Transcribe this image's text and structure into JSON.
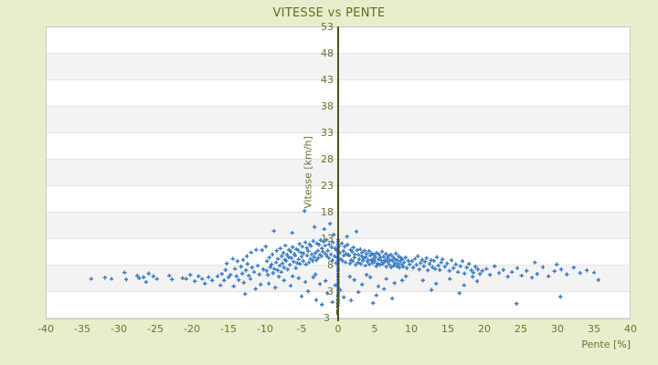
{
  "chart": {
    "title": "VITESSE vs PENTE",
    "colors": {
      "background": "#e8eecd",
      "point_blue": "#3e7fc4",
      "axis_line_olive": "#4c521a",
      "tick_text_olive": "#6d7133",
      "title_text_olive": "#5e6d1d",
      "band_gray": "#f3f3f3",
      "grid_line": "#e4e4e4",
      "plot_border": "#c9c9c9"
    }
  },
  "chart_data": {
    "type": "scatter",
    "title": "VITESSE vs PENTE",
    "xlabel": "Pente [%]",
    "ylabel": "Vitesse [km/h]",
    "xlim": [
      -40,
      40
    ],
    "ylim": [
      -2,
      53
    ],
    "x_ticks": [
      "-40",
      "-35",
      "-30",
      "-25",
      "-20",
      "-15",
      "-10",
      "-5",
      "0",
      "5",
      "10",
      "15",
      "20",
      "25",
      "30",
      "35",
      "40"
    ],
    "y_ticks": [
      "53",
      "48",
      "43",
      "38",
      "33",
      "28",
      "23",
      "18",
      "13",
      "8",
      "3"
    ],
    "y_axis_min_label": "3",
    "grid": "horizontal-bands-alternating-white-gray",
    "legend": false,
    "marker": "plus",
    "points": [
      [
        -33.8,
        5.5
      ],
      [
        -31.9,
        5.7
      ],
      [
        -31.0,
        5.5
      ],
      [
        -29.2,
        6.7
      ],
      [
        -29.0,
        5.4
      ],
      [
        -27.5,
        6.1
      ],
      [
        -27.2,
        5.6
      ],
      [
        -26.6,
        5.8
      ],
      [
        -26.3,
        4.9
      ],
      [
        -25.9,
        6.5
      ],
      [
        -25.3,
        6.0
      ],
      [
        -24.8,
        5.5
      ],
      [
        -23.1,
        6.1
      ],
      [
        -22.7,
        5.4
      ],
      [
        -21.3,
        5.6
      ],
      [
        -20.8,
        5.5
      ],
      [
        -20.2,
        6.2
      ],
      [
        -19.6,
        5.0
      ],
      [
        -19.1,
        6.0
      ],
      [
        -18.6,
        5.5
      ],
      [
        -18.2,
        4.6
      ],
      [
        -17.7,
        5.8
      ],
      [
        -17.2,
        5.2
      ],
      [
        -16.5,
        6.0
      ],
      [
        -16.1,
        4.3
      ],
      [
        -15.9,
        6.4
      ],
      [
        -15.6,
        5.2
      ],
      [
        -15.4,
        7.2
      ],
      [
        -15.2,
        8.4
      ],
      [
        -15.0,
        5.8
      ],
      [
        -14.7,
        6.2
      ],
      [
        -14.4,
        9.3
      ],
      [
        -14.3,
        4.1
      ],
      [
        -14.1,
        7.4
      ],
      [
        -13.9,
        6.0
      ],
      [
        -13.8,
        8.8
      ],
      [
        -13.6,
        5.3
      ],
      [
        -13.3,
        7.8
      ],
      [
        -13.1,
        6.5
      ],
      [
        -13.0,
        9.1
      ],
      [
        -12.9,
        4.8
      ],
      [
        -12.7,
        2.6
      ],
      [
        -12.6,
        7.1
      ],
      [
        -12.5,
        9.8
      ],
      [
        -12.4,
        8.3
      ],
      [
        -12.2,
        6.1
      ],
      [
        -12.0,
        5.5
      ],
      [
        -11.9,
        10.5
      ],
      [
        -11.8,
        7.6
      ],
      [
        -11.5,
        6.8
      ],
      [
        -11.3,
        3.6
      ],
      [
        -11.2,
        11.0
      ],
      [
        -11.0,
        8.0
      ],
      [
        -10.8,
        6.3
      ],
      [
        -10.6,
        4.4
      ],
      [
        -10.4,
        10.9
      ],
      [
        -10.2,
        7.3
      ],
      [
        -9.9,
        11.6
      ],
      [
        -9.8,
        7.0
      ],
      [
        -9.7,
        8.8
      ],
      [
        -9.6,
        6.2
      ],
      [
        -9.5,
        4.6
      ],
      [
        -9.4,
        9.5
      ],
      [
        -9.3,
        7.7
      ],
      [
        -9.1,
        8.2
      ],
      [
        -9.0,
        10.1
      ],
      [
        -8.9,
        6.6
      ],
      [
        -8.8,
        14.5
      ],
      [
        -8.7,
        7.4
      ],
      [
        -8.6,
        3.8
      ],
      [
        -8.5,
        8.6
      ],
      [
        -8.4,
        10.8
      ],
      [
        -8.3,
        7.1
      ],
      [
        -8.2,
        9.3
      ],
      [
        -8.1,
        5.9
      ],
      [
        -8.0,
        8.0
      ],
      [
        -7.9,
        11.2
      ],
      [
        -7.8,
        6.8
      ],
      [
        -7.7,
        9.8
      ],
      [
        -7.6,
        8.4
      ],
      [
        -7.5,
        10.4
      ],
      [
        -7.4,
        7.6
      ],
      [
        -7.3,
        9.1
      ],
      [
        -7.2,
        11.8
      ],
      [
        -7.1,
        8.9
      ],
      [
        -7.0,
        10.0
      ],
      [
        -6.9,
        7.3
      ],
      [
        -6.8,
        9.6
      ],
      [
        -6.7,
        11.0
      ],
      [
        -6.6,
        8.1
      ],
      [
        -6.5,
        10.6
      ],
      [
        -6.4,
        9.4
      ],
      [
        -6.3,
        14.2
      ],
      [
        -6.2,
        11.5
      ],
      [
        -6.1,
        8.7
      ],
      [
        -6.0,
        10.2
      ],
      [
        -5.9,
        9.9
      ],
      [
        -5.8,
        7.5
      ],
      [
        -5.7,
        11.1
      ],
      [
        -5.6,
        8.5
      ],
      [
        -5.5,
        10.9
      ],
      [
        -5.4,
        9.2
      ],
      [
        -5.3,
        12.1
      ],
      [
        -5.2,
        8.3
      ],
      [
        -5.1,
        10.5
      ],
      [
        -5.0,
        9.7
      ],
      [
        -4.9,
        11.6
      ],
      [
        -4.8,
        8.8
      ],
      [
        -4.7,
        10.3
      ],
      [
        -4.6,
        18.3
      ],
      [
        -4.5,
        12.4
      ],
      [
        -4.4,
        8.2
      ],
      [
        -4.3,
        11.3
      ],
      [
        -4.2,
        9.9
      ],
      [
        -4.1,
        10.7
      ],
      [
        -4.0,
        8.6
      ],
      [
        -3.9,
        12.0
      ],
      [
        -3.8,
        9.3
      ],
      [
        -3.7,
        11.7
      ],
      [
        -3.6,
        10.1
      ],
      [
        -3.5,
        8.9
      ],
      [
        -3.4,
        12.6
      ],
      [
        -3.3,
        9.6
      ],
      [
        -3.2,
        15.3
      ],
      [
        -3.1,
        10.4
      ],
      [
        -3.0,
        9.0
      ],
      [
        -2.9,
        12.2
      ],
      [
        -2.8,
        10.8
      ],
      [
        -2.7,
        9.4
      ],
      [
        -2.6,
        11.9
      ],
      [
        -2.5,
        10.0
      ],
      [
        -2.4,
        12.8
      ],
      [
        -2.3,
        9.8
      ],
      [
        -2.2,
        11.2
      ],
      [
        -2.1,
        10.6
      ],
      [
        -2.0,
        12.5
      ],
      [
        -1.9,
        14.9
      ],
      [
        -1.8,
        11.8
      ],
      [
        -1.7,
        10.2
      ],
      [
        -1.6,
        12.9
      ],
      [
        -1.5,
        9.7
      ],
      [
        -7.4,
        5.2
      ],
      [
        -6.5,
        4.2
      ],
      [
        -5.4,
        5.6
      ],
      [
        -4.5,
        4.9
      ],
      [
        -3.4,
        5.8
      ],
      [
        -2.5,
        4.5
      ],
      [
        -1.7,
        5.1
      ],
      [
        -6.2,
        6.0
      ],
      [
        -3.1,
        6.3
      ],
      [
        -5.0,
        2.2
      ],
      [
        -3.0,
        1.5
      ],
      [
        -4.1,
        3.1
      ],
      [
        -1.4,
        10.8
      ],
      [
        -1.3,
        9.4
      ],
      [
        -1.2,
        12.0
      ],
      [
        -1.1,
        15.9
      ],
      [
        -1.0,
        10.1
      ],
      [
        -0.9,
        11.5
      ],
      [
        -0.8,
        9.0
      ],
      [
        -0.7,
        12.4
      ],
      [
        -0.6,
        13.8
      ],
      [
        -0.5,
        9.8
      ],
      [
        -0.4,
        11.2
      ],
      [
        -0.3,
        8.5
      ],
      [
        -0.2,
        10.9
      ],
      [
        -0.1,
        9.5
      ],
      [
        0.1,
        11.8
      ],
      [
        0.2,
        10.4
      ],
      [
        0.4,
        9.2
      ],
      [
        0.5,
        12.2
      ],
      [
        0.6,
        8.9
      ],
      [
        0.7,
        10.7
      ],
      [
        0.8,
        9.9
      ],
      [
        0.9,
        11.6
      ],
      [
        1.0,
        8.6
      ],
      [
        1.1,
        10.2
      ],
      [
        1.2,
        13.5
      ],
      [
        1.3,
        11.9
      ],
      [
        1.4,
        10.0
      ],
      [
        -1.5,
        2.8
      ],
      [
        -0.8,
        1.1
      ],
      [
        0.8,
        2.0
      ],
      [
        -2.2,
        0.6
      ],
      [
        1.8,
        1.4
      ],
      [
        1.6,
        5.9
      ],
      [
        -0.4,
        4.3
      ],
      [
        0.3,
        3.4
      ],
      [
        0,
        12.9
      ],
      [
        0,
        12.5
      ],
      [
        0,
        12.1
      ],
      [
        0,
        11.7
      ],
      [
        0,
        11.3
      ],
      [
        0,
        10.9
      ],
      [
        0,
        10.5
      ],
      [
        0,
        10.1
      ],
      [
        0,
        9.7
      ],
      [
        0,
        9.3
      ],
      [
        0,
        8.9
      ],
      [
        0,
        8.5
      ],
      [
        0,
        8.1
      ],
      [
        0,
        7.7
      ],
      [
        0,
        7.3
      ],
      [
        0,
        6.9
      ],
      [
        0,
        6.5
      ],
      [
        0,
        6.1
      ],
      [
        0,
        5.7
      ],
      [
        0,
        5.3
      ],
      [
        0,
        4.9
      ],
      [
        0,
        4.5
      ],
      [
        0,
        4.1
      ],
      [
        0,
        3.7
      ],
      [
        0,
        3.3
      ],
      [
        0,
        2.9
      ],
      [
        0,
        2.5
      ],
      [
        0,
        2.1
      ],
      [
        0,
        1.7
      ],
      [
        0,
        1.3
      ],
      [
        0,
        0.9
      ],
      [
        0,
        0.5
      ],
      [
        1.5,
        9.9
      ],
      [
        1.6,
        8.4
      ],
      [
        1.7,
        11.0
      ],
      [
        1.8,
        9.0
      ],
      [
        1.9,
        10.6
      ],
      [
        2.0,
        8.8
      ],
      [
        2.1,
        11.4
      ],
      [
        2.2,
        9.5
      ],
      [
        2.3,
        10.1
      ],
      [
        2.4,
        8.1
      ],
      [
        2.5,
        14.4
      ],
      [
        2.6,
        10.9
      ],
      [
        2.7,
        8.6
      ],
      [
        2.8,
        10.0
      ],
      [
        2.9,
        9.2
      ],
      [
        3.0,
        11.1
      ],
      [
        3.1,
        8.3
      ],
      [
        3.2,
        9.8
      ],
      [
        3.3,
        10.5
      ],
      [
        3.4,
        8.9
      ],
      [
        3.5,
        9.4
      ],
      [
        3.6,
        10.8
      ],
      [
        3.7,
        8.0
      ],
      [
        3.8,
        9.6
      ],
      [
        3.9,
        10.2
      ],
      [
        4.0,
        8.7
      ],
      [
        4.1,
        9.1
      ],
      [
        4.2,
        10.7
      ],
      [
        4.3,
        8.2
      ],
      [
        4.4,
        9.9
      ],
      [
        4.5,
        9.0
      ],
      [
        4.6,
        10.3
      ],
      [
        4.7,
        8.5
      ],
      [
        4.8,
        9.3
      ],
      [
        4.9,
        10.0
      ],
      [
        5.0,
        8.8
      ],
      [
        5.1,
        9.6
      ],
      [
        5.2,
        7.9
      ],
      [
        5.3,
        10.4
      ],
      [
        5.4,
        8.4
      ],
      [
        5.5,
        9.2
      ],
      [
        5.6,
        10.1
      ],
      [
        5.7,
        8.1
      ],
      [
        5.8,
        9.5
      ],
      [
        5.9,
        8.9
      ],
      [
        6.0,
        10.6
      ],
      [
        6.1,
        8.3
      ],
      [
        6.2,
        9.7
      ],
      [
        6.3,
        8.6
      ],
      [
        6.4,
        9.0
      ],
      [
        6.5,
        10.2
      ],
      [
        6.6,
        7.8
      ],
      [
        6.7,
        9.4
      ],
      [
        6.8,
        8.7
      ],
      [
        6.9,
        9.9
      ],
      [
        7.0,
        8.2
      ],
      [
        7.1,
        9.1
      ],
      [
        7.2,
        10.0
      ],
      [
        7.3,
        7.7
      ],
      [
        7.4,
        8.9
      ],
      [
        7.5,
        9.6
      ],
      [
        7.6,
        8.0
      ],
      [
        7.7,
        9.3
      ],
      [
        7.8,
        8.5
      ],
      [
        7.9,
        10.3
      ],
      [
        8.0,
        7.9
      ],
      [
        8.1,
        9.0
      ],
      [
        8.2,
        8.3
      ],
      [
        8.3,
        9.8
      ],
      [
        8.4,
        7.6
      ],
      [
        8.5,
        8.8
      ],
      [
        8.6,
        9.4
      ],
      [
        8.7,
        8.1
      ],
      [
        8.8,
        9.2
      ],
      [
        8.9,
        7.8
      ],
      [
        9.0,
        8.6
      ],
      [
        9.2,
        9.5
      ],
      [
        9.4,
        7.5
      ],
      [
        9.6,
        8.9
      ],
      [
        9.8,
        8.2
      ],
      [
        2.2,
        5.3
      ],
      [
        3.3,
        4.4
      ],
      [
        4.4,
        5.8
      ],
      [
        5.5,
        4.1
      ],
      [
        6.6,
        5.5
      ],
      [
        7.7,
        4.7
      ],
      [
        8.8,
        5.2
      ],
      [
        3.9,
        6.2
      ],
      [
        6.3,
        3.6
      ],
      [
        9.3,
        6.0
      ],
      [
        2.8,
        3.0
      ],
      [
        5.2,
        2.4
      ],
      [
        7.4,
        1.8
      ],
      [
        4.8,
        0.9
      ],
      [
        10.1,
        8.8
      ],
      [
        10.3,
        7.6
      ],
      [
        10.5,
        9.3
      ],
      [
        10.7,
        8.1
      ],
      [
        10.9,
        9.8
      ],
      [
        11.1,
        7.3
      ],
      [
        11.3,
        8.5
      ],
      [
        11.5,
        9.1
      ],
      [
        11.7,
        7.9
      ],
      [
        11.9,
        8.7
      ],
      [
        12.1,
        9.4
      ],
      [
        12.3,
        7.1
      ],
      [
        12.5,
        8.3
      ],
      [
        12.7,
        9.0
      ],
      [
        12.9,
        7.7
      ],
      [
        13.1,
        8.9
      ],
      [
        13.3,
        7.4
      ],
      [
        13.5,
        9.6
      ],
      [
        13.7,
        8.0
      ],
      [
        13.9,
        7.2
      ],
      [
        14.1,
        8.6
      ],
      [
        14.3,
        9.2
      ],
      [
        14.6,
        7.8
      ],
      [
        14.9,
        8.4
      ],
      [
        15.2,
        7.0
      ],
      [
        15.5,
        9.0
      ],
      [
        15.8,
        7.5
      ],
      [
        16.1,
        8.2
      ],
      [
        16.4,
        6.8
      ],
      [
        16.7,
        7.9
      ],
      [
        17.0,
        8.8
      ],
      [
        17.3,
        6.5
      ],
      [
        17.6,
        7.6
      ],
      [
        17.9,
        8.3
      ],
      [
        18.2,
        7.1
      ],
      [
        18.5,
        6.7
      ],
      [
        18.8,
        7.8
      ],
      [
        19.1,
        7.3
      ],
      [
        19.4,
        6.4
      ],
      [
        19.7,
        7.0
      ],
      [
        11.6,
        5.2
      ],
      [
        13.4,
        4.6
      ],
      [
        15.3,
        5.5
      ],
      [
        17.2,
        4.3
      ],
      [
        19.0,
        5.0
      ],
      [
        12.8,
        3.4
      ],
      [
        16.6,
        2.8
      ],
      [
        18.4,
        5.9
      ],
      [
        20.3,
        7.4
      ],
      [
        20.8,
        6.2
      ],
      [
        21.4,
        7.9
      ],
      [
        22.0,
        6.6
      ],
      [
        22.6,
        7.2
      ],
      [
        23.2,
        5.9
      ],
      [
        23.8,
        6.8
      ],
      [
        24.4,
        0.8
      ],
      [
        24.5,
        7.5
      ],
      [
        25.1,
        6.1
      ],
      [
        25.8,
        7.0
      ],
      [
        26.5,
        5.7
      ],
      [
        26.9,
        8.6
      ],
      [
        27.2,
        6.4
      ],
      [
        28.0,
        7.7
      ],
      [
        28.8,
        6.0
      ],
      [
        29.6,
        6.9
      ],
      [
        29.9,
        8.2
      ],
      [
        30.4,
        2.1
      ],
      [
        30.5,
        7.3
      ],
      [
        31.3,
        6.3
      ],
      [
        32.2,
        7.6
      ],
      [
        33.1,
        6.6
      ],
      [
        34.0,
        7.1
      ],
      [
        35.0,
        6.7
      ],
      [
        35.6,
        5.3
      ]
    ],
    "zero_axis_marks": [
      2.3,
      1.6,
      1.0,
      0.3,
      -0.4,
      -1.0
    ]
  }
}
